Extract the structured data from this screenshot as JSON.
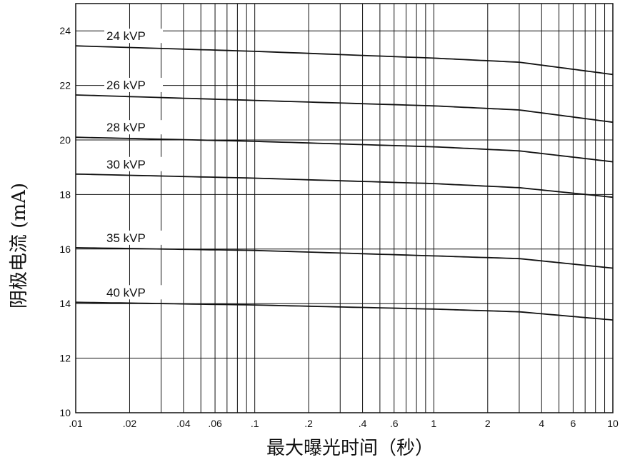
{
  "chart_data": {
    "type": "line",
    "title": "",
    "xlabel": "最大曝光时间（秒）",
    "ylabel": "阴极电流 (mA)",
    "x_scale": "log",
    "xlim": [
      0.01,
      10
    ],
    "ylim": [
      10,
      25
    ],
    "grid": true,
    "x_minor_gridlines": [
      0.01,
      0.02,
      0.03,
      0.04,
      0.05,
      0.06,
      0.07,
      0.08,
      0.09,
      0.1,
      0.2,
      0.3,
      0.4,
      0.5,
      0.6,
      0.7,
      0.8,
      0.9,
      1,
      2,
      3,
      4,
      5,
      6,
      7,
      8,
      9,
      10
    ],
    "y_gridlines": [
      12,
      14,
      16,
      18,
      20,
      22,
      24
    ],
    "x_ticks": [
      {
        "value": 0.01,
        "label": ".01"
      },
      {
        "value": 0.02,
        "label": ".02"
      },
      {
        "value": 0.04,
        "label": ".04"
      },
      {
        "value": 0.06,
        "label": ".06"
      },
      {
        "value": 0.1,
        "label": ".1"
      },
      {
        "value": 0.2,
        "label": ".2"
      },
      {
        "value": 0.4,
        "label": ".4"
      },
      {
        "value": 0.6,
        "label": ".6"
      },
      {
        "value": 1,
        "label": "1"
      },
      {
        "value": 2,
        "label": "2"
      },
      {
        "value": 4,
        "label": "4"
      },
      {
        "value": 6,
        "label": "6"
      },
      {
        "value": 10,
        "label": "10"
      }
    ],
    "y_ticks": [
      {
        "value": 10,
        "label": "10"
      },
      {
        "value": 12,
        "label": "12"
      },
      {
        "value": 14,
        "label": "14"
      },
      {
        "value": 16,
        "label": "16"
      },
      {
        "value": 18,
        "label": "18"
      },
      {
        "value": 20,
        "label": "20"
      },
      {
        "value": 22,
        "label": "22"
      },
      {
        "value": 24,
        "label": "24"
      }
    ],
    "series": [
      {
        "name": "24 kVP",
        "x": [
          0.01,
          0.1,
          1,
          3,
          10
        ],
        "y": [
          23.45,
          23.25,
          23.0,
          22.85,
          22.4
        ]
      },
      {
        "name": "26 kVP",
        "x": [
          0.01,
          0.1,
          1,
          3,
          10
        ],
        "y": [
          21.65,
          21.45,
          21.25,
          21.1,
          20.65
        ]
      },
      {
        "name": "28 kVP",
        "x": [
          0.01,
          0.1,
          1,
          3,
          10
        ],
        "y": [
          20.1,
          19.95,
          19.75,
          19.6,
          19.2
        ]
      },
      {
        "name": "30 kVP",
        "x": [
          0.01,
          0.1,
          1,
          3,
          10
        ],
        "y": [
          18.75,
          18.6,
          18.4,
          18.25,
          17.9
        ]
      },
      {
        "name": "35 kVP",
        "x": [
          0.01,
          0.1,
          1,
          3,
          10
        ],
        "y": [
          16.05,
          15.95,
          15.75,
          15.65,
          15.3
        ]
      },
      {
        "name": "40 kVP",
        "x": [
          0.01,
          0.1,
          1,
          3,
          10
        ],
        "y": [
          14.05,
          13.95,
          13.8,
          13.7,
          13.4
        ]
      }
    ],
    "colors": {
      "line": "#111111",
      "grid": "#111111",
      "background": "#ffffff"
    }
  }
}
